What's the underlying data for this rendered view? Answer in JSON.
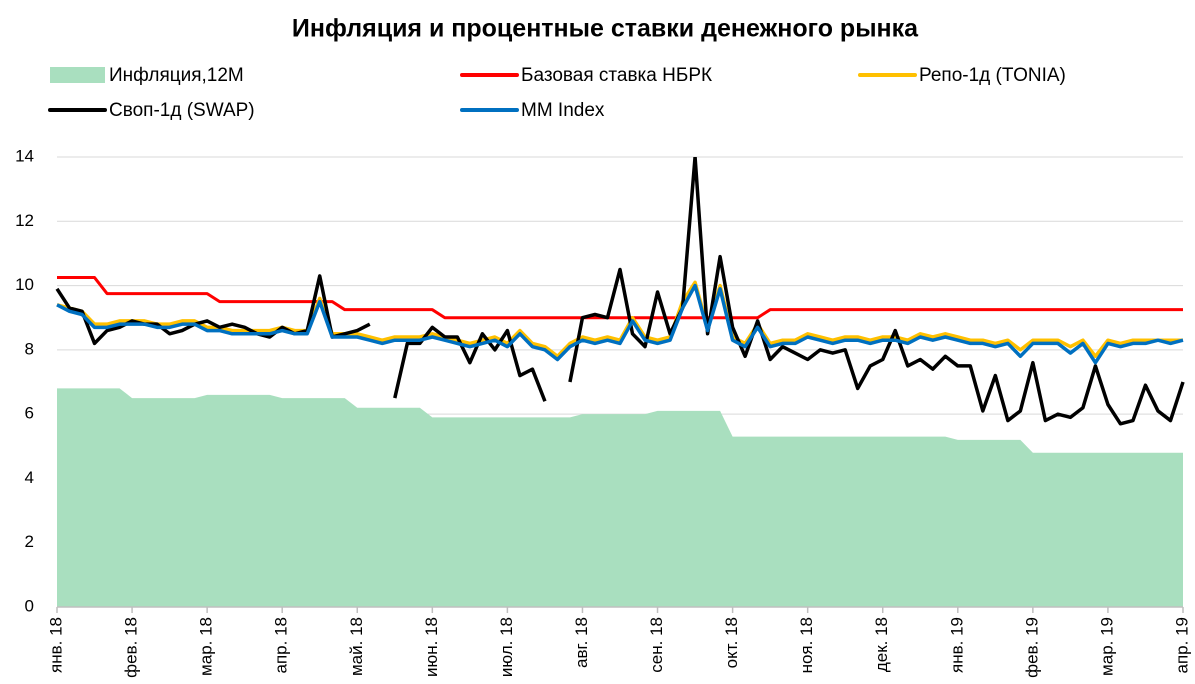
{
  "chart_data": {
    "type": "line",
    "title": "Инфляция и процентные ставки денежного рынка",
    "legend": "top",
    "grid": true,
    "ylim": [
      0,
      14
    ],
    "yticks": [
      0,
      2,
      4,
      6,
      8,
      10,
      12,
      14
    ],
    "categories": [
      "янв. 18",
      null,
      null,
      null,
      null,
      null,
      "фев. 18",
      null,
      null,
      null,
      null,
      null,
      "мар. 18",
      null,
      null,
      null,
      null,
      null,
      "апр. 18",
      null,
      null,
      null,
      null,
      null,
      "май. 18",
      null,
      null,
      null,
      null,
      null,
      "июн. 18",
      null,
      null,
      null,
      null,
      null,
      "июл. 18",
      null,
      null,
      null,
      null,
      null,
      "авг. 18",
      null,
      null,
      null,
      null,
      null,
      "сен. 18",
      null,
      null,
      null,
      null,
      null,
      "окт. 18",
      null,
      null,
      null,
      null,
      null,
      "ноя. 18",
      null,
      null,
      null,
      null,
      null,
      "дек. 18",
      null,
      null,
      null,
      null,
      null,
      "янв. 19",
      null,
      null,
      null,
      null,
      null,
      "фев. 19",
      null,
      null,
      null,
      null,
      null,
      "мар. 19",
      null,
      null,
      null,
      null,
      null,
      "апр. 19"
    ],
    "series": [
      {
        "name": "Инфляция,12M",
        "style": "area",
        "color": "#a9dfbf",
        "values": [
          6.8,
          6.8,
          6.8,
          6.8,
          6.8,
          6.8,
          6.5,
          6.5,
          6.5,
          6.5,
          6.5,
          6.5,
          6.6,
          6.6,
          6.6,
          6.6,
          6.6,
          6.6,
          6.5,
          6.5,
          6.5,
          6.5,
          6.5,
          6.5,
          6.2,
          6.2,
          6.2,
          6.2,
          6.2,
          6.2,
          5.9,
          5.9,
          5.9,
          5.9,
          5.9,
          5.9,
          5.9,
          5.9,
          5.9,
          5.9,
          5.9,
          5.9,
          6.0,
          6.0,
          6.0,
          6.0,
          6.0,
          6.0,
          6.1,
          6.1,
          6.1,
          6.1,
          6.1,
          6.1,
          5.3,
          5.3,
          5.3,
          5.3,
          5.3,
          5.3,
          5.3,
          5.3,
          5.3,
          5.3,
          5.3,
          5.3,
          5.3,
          5.3,
          5.3,
          5.3,
          5.3,
          5.3,
          5.2,
          5.2,
          5.2,
          5.2,
          5.2,
          5.2,
          4.8,
          4.8,
          4.8,
          4.8,
          4.8,
          4.8,
          4.8,
          4.8,
          4.8,
          4.8,
          4.8,
          4.8,
          4.8
        ]
      },
      {
        "name": "Базовая ставка НБРК",
        "style": "line",
        "color": "#ff0000",
        "values": [
          10.25,
          10.25,
          10.25,
          10.25,
          9.75,
          9.75,
          9.75,
          9.75,
          9.75,
          9.75,
          9.75,
          9.75,
          9.75,
          9.5,
          9.5,
          9.5,
          9.5,
          9.5,
          9.5,
          9.5,
          9.5,
          9.5,
          9.5,
          9.25,
          9.25,
          9.25,
          9.25,
          9.25,
          9.25,
          9.25,
          9.25,
          9.0,
          9.0,
          9.0,
          9.0,
          9.0,
          9.0,
          9.0,
          9.0,
          9.0,
          9.0,
          9.0,
          9.0,
          9.0,
          9.0,
          9.0,
          9.0,
          9.0,
          9.0,
          9.0,
          9.0,
          9.0,
          9.0,
          9.0,
          9.0,
          9.0,
          9.0,
          9.25,
          9.25,
          9.25,
          9.25,
          9.25,
          9.25,
          9.25,
          9.25,
          9.25,
          9.25,
          9.25,
          9.25,
          9.25,
          9.25,
          9.25,
          9.25,
          9.25,
          9.25,
          9.25,
          9.25,
          9.25,
          9.25,
          9.25,
          9.25,
          9.25,
          9.25,
          9.25,
          9.25,
          9.25,
          9.25,
          9.25,
          9.25,
          9.25,
          9.25
        ]
      },
      {
        "name": "Репо-1д (TONIA)",
        "style": "line",
        "color": "#ffc000",
        "values": [
          9.4,
          9.3,
          9.2,
          8.8,
          8.8,
          8.9,
          8.9,
          8.9,
          8.8,
          8.8,
          8.9,
          8.9,
          8.7,
          8.7,
          8.6,
          8.6,
          8.6,
          8.6,
          8.7,
          8.6,
          8.6,
          9.6,
          8.5,
          8.5,
          8.5,
          8.4,
          8.3,
          8.4,
          8.4,
          8.4,
          8.5,
          8.4,
          8.3,
          8.2,
          8.3,
          8.4,
          8.2,
          8.6,
          8.2,
          8.1,
          7.8,
          8.2,
          8.4,
          8.3,
          8.4,
          8.3,
          9.0,
          8.4,
          8.3,
          8.4,
          9.5,
          10.1,
          8.7,
          10.0,
          8.4,
          8.2,
          8.8,
          8.2,
          8.3,
          8.3,
          8.5,
          8.4,
          8.3,
          8.4,
          8.4,
          8.3,
          8.4,
          8.4,
          8.3,
          8.5,
          8.4,
          8.5,
          8.4,
          8.3,
          8.3,
          8.2,
          8.3,
          8.0,
          8.3,
          8.3,
          8.3,
          8.1,
          8.3,
          7.8,
          8.3,
          8.2,
          8.3,
          8.3,
          8.3,
          8.3,
          8.3
        ]
      },
      {
        "name": "Своп-1д (SWAP)",
        "style": "line",
        "color": "#000000",
        "values": [
          9.9,
          9.3,
          9.2,
          8.2,
          8.6,
          8.7,
          8.9,
          8.8,
          8.8,
          8.5,
          8.6,
          8.8,
          8.9,
          8.7,
          8.8,
          8.7,
          8.5,
          8.4,
          8.7,
          8.5,
          8.6,
          10.3,
          8.4,
          8.5,
          8.6,
          8.8,
          null,
          6.5,
          8.2,
          8.2,
          8.7,
          8.4,
          8.4,
          7.6,
          8.5,
          8.0,
          8.6,
          7.2,
          7.4,
          6.4,
          null,
          7.0,
          9.0,
          9.1,
          9.0,
          10.5,
          8.5,
          8.1,
          9.8,
          8.5,
          9.3,
          14.0,
          8.5,
          10.9,
          8.7,
          7.8,
          8.9,
          7.7,
          8.1,
          7.9,
          7.7,
          8.0,
          7.9,
          8.0,
          6.8,
          7.5,
          7.7,
          8.6,
          7.5,
          7.7,
          7.4,
          7.8,
          7.5,
          7.5,
          6.1,
          7.2,
          5.8,
          6.1,
          7.6,
          5.8,
          6.0,
          5.9,
          6.2,
          7.5,
          6.3,
          5.7,
          5.8,
          6.9,
          6.1,
          5.8,
          7.0
        ]
      },
      {
        "name": "MM Index",
        "style": "line",
        "color": "#0070c0",
        "values": [
          9.4,
          9.2,
          9.1,
          8.7,
          8.7,
          8.8,
          8.8,
          8.8,
          8.7,
          8.7,
          8.8,
          8.8,
          8.6,
          8.6,
          8.5,
          8.5,
          8.5,
          8.5,
          8.6,
          8.5,
          8.5,
          9.5,
          8.4,
          8.4,
          8.4,
          8.3,
          8.2,
          8.3,
          8.3,
          8.3,
          8.4,
          8.3,
          8.2,
          8.1,
          8.2,
          8.3,
          8.1,
          8.5,
          8.1,
          8.0,
          7.7,
          8.1,
          8.3,
          8.2,
          8.3,
          8.2,
          8.9,
          8.3,
          8.2,
          8.3,
          9.3,
          10.0,
          8.6,
          9.9,
          8.3,
          8.1,
          8.7,
          8.1,
          8.2,
          8.2,
          8.4,
          8.3,
          8.2,
          8.3,
          8.3,
          8.2,
          8.3,
          8.3,
          8.2,
          8.4,
          8.3,
          8.4,
          8.3,
          8.2,
          8.2,
          8.1,
          8.2,
          7.8,
          8.2,
          8.2,
          8.2,
          7.9,
          8.2,
          7.6,
          8.2,
          8.1,
          8.2,
          8.2,
          8.3,
          8.2,
          8.3
        ]
      }
    ]
  }
}
